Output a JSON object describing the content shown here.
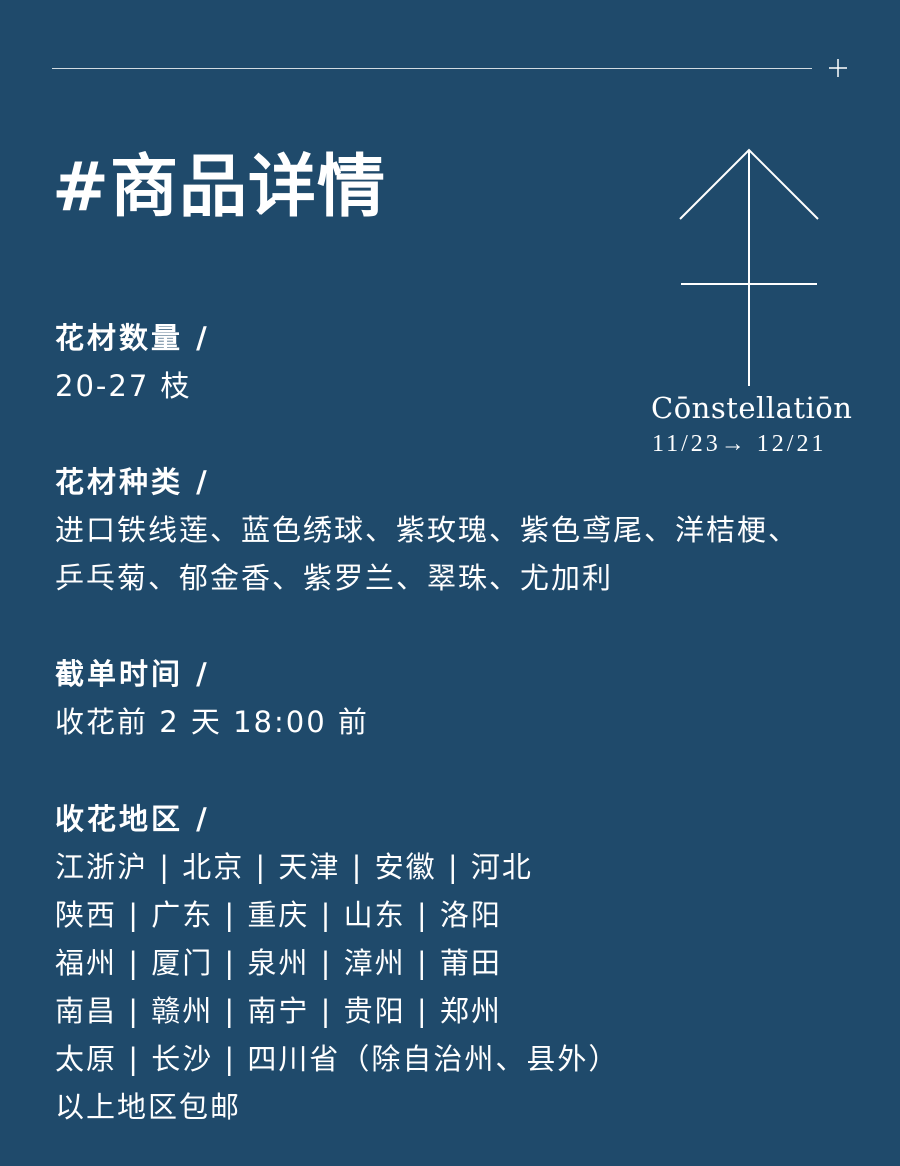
{
  "title": "#商品详情",
  "constellation": {
    "name": "Cōnstellatiōn",
    "dates": "11/23→ 12/21"
  },
  "sections": {
    "quantity": {
      "label": "花材数量 /",
      "lines": [
        "20-27 枝"
      ]
    },
    "variety": {
      "label": "花材种类 /",
      "lines": [
        "进口铁线莲、蓝色绣球、紫玫瑰、紫色鸢尾、洋桔梗、",
        "乒乓菊、郁金香、紫罗兰、翠珠、尤加利"
      ]
    },
    "deadline": {
      "label": "截单时间 /",
      "lines": [
        "收花前 2 天 18:00 前"
      ]
    },
    "regions": {
      "label": "收花地区 /",
      "lines": [
        "江浙沪 | 北京 | 天津 | 安徽 | 河北",
        "陕西 | 广东 | 重庆 | 山东 | 洛阳",
        "福州 | 厦门 | 泉州 | 漳州 | 莆田",
        "南昌 | 赣州 | 南宁 | 贵阳 | 郑州",
        "太原 | 长沙 |  四川省（除自治州、县外）",
        "以上地区包邮"
      ]
    }
  },
  "colors": {
    "background": "#1f4a6b",
    "text": "#ffffff"
  },
  "icons": [
    "plus-icon",
    "sagittarius-icon"
  ]
}
